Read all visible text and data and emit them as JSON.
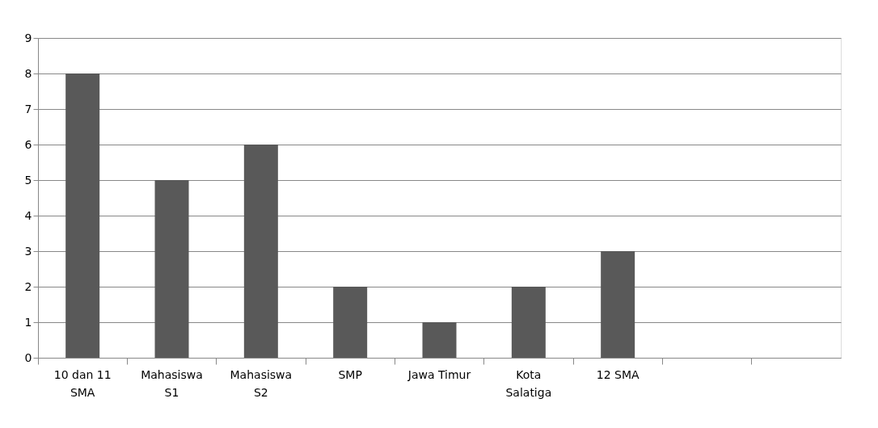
{
  "chart_data": {
    "type": "bar",
    "categories": [
      "10 dan 11\nSMA",
      "Mahasiswa\nS1",
      "Mahasiswa\nS2",
      "SMP",
      "Jawa Timur",
      "Kota\nSalatiga",
      "12 SMA",
      null,
      null
    ],
    "values": [
      8,
      5,
      6,
      2,
      1,
      2,
      3,
      null,
      null
    ],
    "color": "#595959",
    "ylim": [
      0,
      9
    ],
    "yticks": [
      0,
      1,
      2,
      3,
      4,
      5,
      6,
      7,
      8,
      9
    ],
    "grid": "y"
  }
}
